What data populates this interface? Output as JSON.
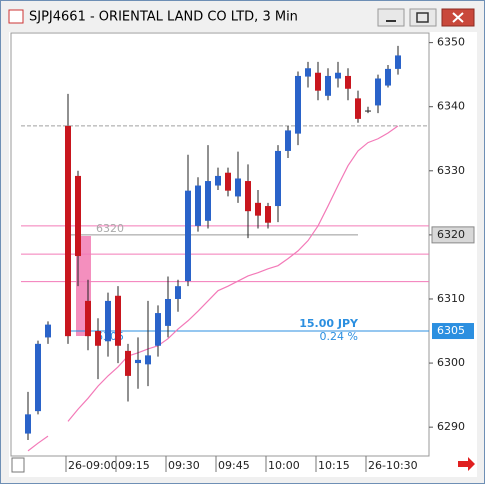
{
  "chart_data": {
    "type": "candlestick",
    "title": "SJPJ4661 - ORIENTAL LAND CO LTD, 3 Min",
    "categories": [
      null,
      null,
      null,
      null,
      "26-09:00",
      null,
      null,
      null,
      null,
      "09:15",
      null,
      null,
      null,
      null,
      "09:30",
      null,
      null,
      null,
      null,
      "09:45",
      null,
      null,
      null,
      null,
      "10:00",
      null,
      null,
      null,
      null,
      "10:15",
      null,
      null,
      null,
      null,
      "26-10:30",
      null,
      null,
      null
    ],
    "open": [
      6289,
      6292.5,
      6304,
      null,
      6337,
      6329.2,
      6309.7,
      6305,
      6303.4,
      6310.5,
      6301.9,
      6300,
      6299.8,
      6302.7,
      6305.8,
      6310,
      6312.8,
      6321.4,
      6322.2,
      6327.7,
      6329.7,
      6326,
      6328.4,
      6325,
      6324.5,
      6324.5,
      6333.1,
      6335.8,
      6344.7,
      6345.3,
      6341.7,
      6344.4,
      6344.8,
      6341.3,
      6339.4,
      6340.2,
      6343.3,
      6345.9
    ],
    "high": [
      6295.5,
      6303.5,
      6306.5,
      null,
      6342,
      6330,
      6313,
      6307,
      6311,
      6312,
      6303,
      6304,
      6309.7,
      6309,
      6313.5,
      6313,
      6332.5,
      6329,
      6334,
      6330.5,
      6330.5,
      6333,
      6331,
      6327,
      6325,
      6334,
      6337,
      6345.5,
      6347,
      6347,
      6346,
      6347,
      6346,
      6342.5,
      6340,
      6345,
      6346.5,
      6349.5
    ],
    "low": [
      6288,
      6292,
      6303,
      null,
      6303,
      6312,
      6302,
      6297.5,
      6301,
      6300,
      6294,
      6296,
      6296.4,
      6301,
      6304,
      6308,
      6312,
      6320.5,
      6321,
      6327,
      6326,
      6325,
      6319.5,
      6321,
      6321,
      6322,
      6332,
      6334,
      6343,
      6341,
      6341,
      6343,
      6341,
      6337.5,
      6339,
      6339,
      6343,
      6345
    ],
    "close": [
      6292,
      6303,
      6306,
      null,
      6304.2,
      6316.7,
      6304.2,
      6302.7,
      6309.7,
      6302.7,
      6298,
      6300.5,
      6301.2,
      6307.8,
      6310,
      6312,
      6326.9,
      6327.7,
      6328.4,
      6329.2,
      6326.9,
      6328.8,
      6323.7,
      6323,
      6321.9,
      6333.1,
      6336.3,
      6344.8,
      6346,
      6342.5,
      6344.8,
      6345.3,
      6342.8,
      6338.1,
      6339.4,
      6344.4,
      6345.9,
      6348
    ],
    "up_color": "#2a63c9",
    "down_color": "#c8161e",
    "overlays": [
      {
        "color": "#f37ab8",
        "values": [
          6286.3,
          6287.5,
          6288.6,
          null,
          6290.9,
          6292.8,
          6294.5,
          6296.4,
          6298,
          6299.4,
          6301.1,
          6301.6,
          6302.2,
          6302.7,
          6303.8,
          6305.3,
          6306.6,
          6308.1,
          6309.7,
          6311.3,
          6312,
          6312.8,
          6313.6,
          6314.1,
          6314.7,
          6315.2,
          6316.3,
          6317.5,
          6319.1,
          6321.4,
          6324.5,
          6327.7,
          6330.8,
          6333.1,
          6334.4,
          6335,
          6335.9,
          6337
        ]
      }
    ],
    "hlines": [
      {
        "value": 6337,
        "color": "#a0a0a0"
      },
      {
        "value": 6321.4,
        "color": "#f37ab8"
      },
      {
        "value": 6317,
        "color": "#f37ab8"
      },
      {
        "value": 6312.7,
        "color": "#f37ab8"
      }
    ],
    "measure": {
      "start": 6320,
      "end": 6305,
      "change": "15.00 JPY",
      "percent": "0.24 %",
      "color": "#2b8fe0"
    },
    "ylim": [
      6285.5,
      6351.5
    ],
    "yticks": [
      6290,
      6300,
      6310,
      6320,
      6330,
      6340,
      6350
    ]
  }
}
